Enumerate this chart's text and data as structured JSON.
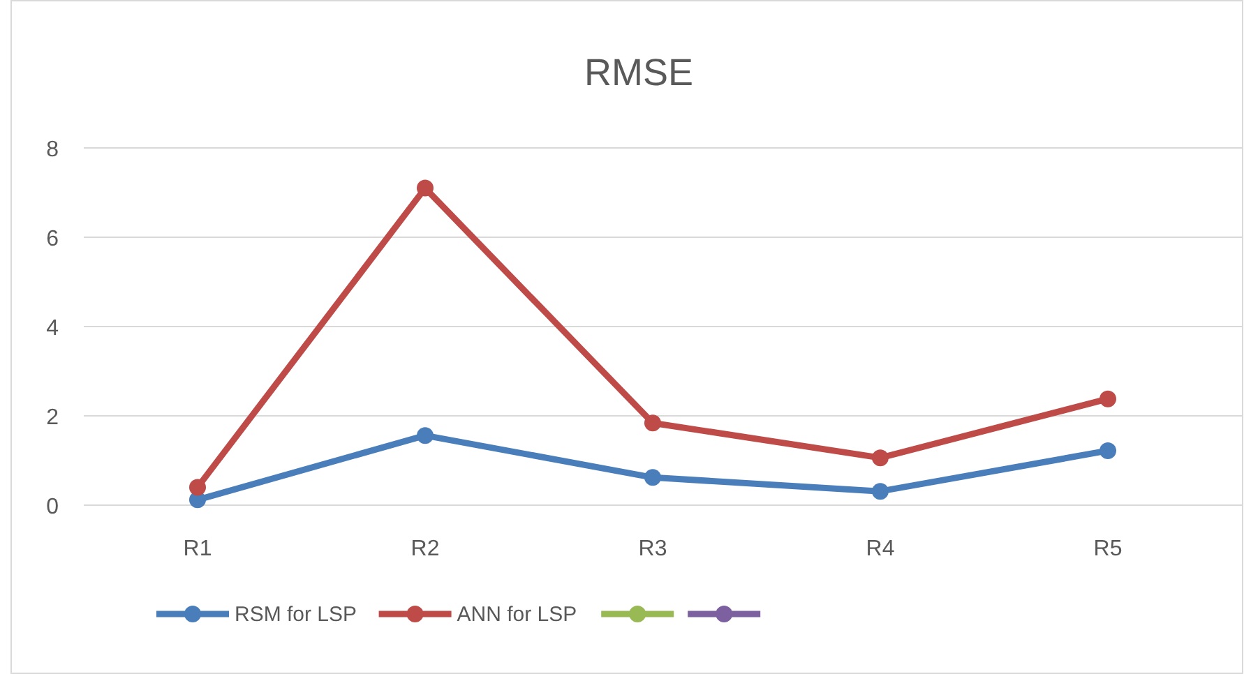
{
  "chart_data": {
    "type": "line",
    "title": "RMSE",
    "categories": [
      "R1",
      "R2",
      "R3",
      "R4",
      "R5"
    ],
    "series": [
      {
        "name": "RSM for LSP",
        "color": "#4a7ebb",
        "values": [
          0.12,
          1.56,
          0.62,
          0.31,
          1.22
        ]
      },
      {
        "name": "ANN for LSP",
        "color": "#be4b48",
        "values": [
          0.4,
          7.1,
          1.84,
          1.06,
          2.38
        ]
      },
      {
        "color": "#98b954",
        "values": [
          null,
          null,
          null,
          null,
          null
        ]
      },
      {
        "color": "#7d60a0",
        "values": [
          null,
          null,
          null,
          null,
          null
        ]
      }
    ],
    "ylim": [
      0,
      8
    ],
    "yticks": [
      0,
      2,
      4,
      6,
      8
    ],
    "grid": "y",
    "legend": "bottom",
    "marker": "circle",
    "line_style": "solid"
  }
}
